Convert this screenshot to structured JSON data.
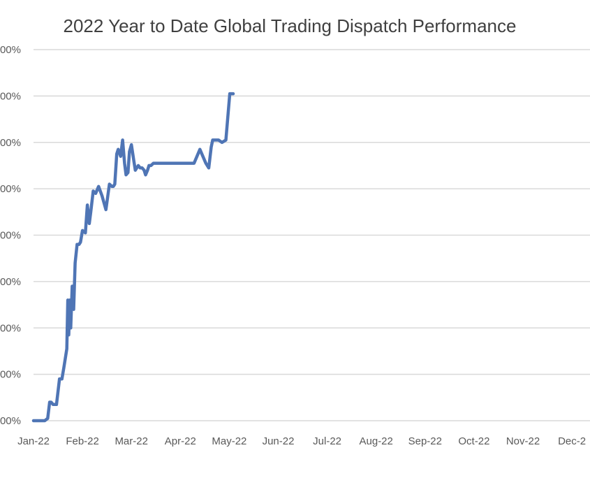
{
  "chart_data": {
    "type": "line",
    "title": "2022 Year to Date Global Trading Dispatch Performance",
    "xlabel": "",
    "ylabel": "",
    "grid": true,
    "legend": "none",
    "line_color": "#4f75b5",
    "grid_color": "#d9d9d9",
    "categories": [
      "Jan-22",
      "Feb-22",
      "Mar-22",
      "Apr-22",
      "May-22",
      "Jun-22",
      "Jul-22",
      "Aug-22",
      "Sep-22",
      "Oct-22",
      "Nov-22",
      "Dec-2"
    ],
    "y_tick_labels": [
      "00%",
      "00%",
      "00%",
      "00%",
      "00%",
      "00%",
      "00%",
      "00%",
      "00%"
    ],
    "ylim": [
      0,
      8
    ],
    "xlim": [
      0,
      11
    ],
    "series": [
      {
        "x": [
          0.0,
          0.13,
          0.23,
          0.29,
          0.33,
          0.36,
          0.4,
          0.44,
          0.47,
          0.53,
          0.58,
          0.62,
          0.68,
          0.7,
          0.72,
          0.74,
          0.76,
          0.79,
          0.82,
          0.85,
          0.89,
          0.93,
          0.96,
          1.0,
          1.06,
          1.1,
          1.14,
          1.17,
          1.22,
          1.27,
          1.33,
          1.4,
          1.48,
          1.55,
          1.6,
          1.63,
          1.66,
          1.7,
          1.73,
          1.78,
          1.82,
          1.86,
          1.89,
          1.93,
          1.96,
          2.0,
          2.05,
          2.08,
          2.14,
          2.18,
          2.22,
          2.26,
          2.29,
          2.33,
          2.36,
          2.4,
          2.45,
          2.5,
          2.56,
          2.66,
          2.84,
          2.96,
          3.1,
          3.28,
          3.4,
          3.52,
          3.58,
          3.63,
          3.66,
          3.71,
          3.78,
          3.85,
          3.93,
          4.01,
          4.08
        ],
        "y": [
          0.0,
          0.0,
          0.0,
          0.05,
          0.4,
          0.4,
          0.35,
          0.35,
          0.35,
          0.9,
          0.9,
          1.15,
          1.55,
          2.6,
          1.85,
          2.6,
          2.0,
          2.9,
          2.4,
          3.4,
          3.8,
          3.8,
          3.85,
          4.1,
          4.05,
          4.65,
          4.25,
          4.5,
          4.95,
          4.9,
          5.05,
          4.85,
          4.55,
          5.1,
          5.05,
          5.05,
          5.1,
          5.75,
          5.85,
          5.7,
          6.05,
          5.55,
          5.3,
          5.35,
          5.8,
          5.95,
          5.6,
          5.4,
          5.5,
          5.45,
          5.45,
          5.4,
          5.3,
          5.4,
          5.5,
          5.5,
          5.55,
          5.55,
          5.55,
          5.55,
          5.55,
          5.55,
          5.55,
          5.55,
          5.85,
          5.55,
          5.45,
          5.9,
          6.05,
          6.05,
          6.05,
          6.0,
          6.05,
          7.05,
          7.05
        ]
      }
    ]
  }
}
